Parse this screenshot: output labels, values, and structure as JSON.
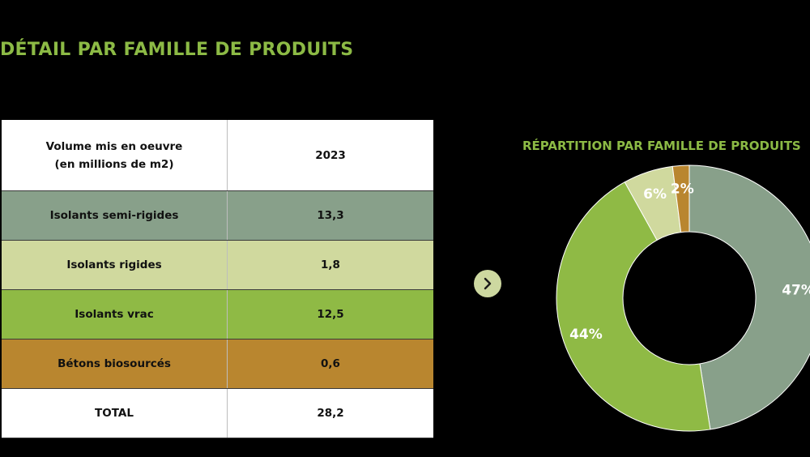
{
  "page": {
    "title": "DÉTAIL PAR FAMILLE DE PRODUITS"
  },
  "table": {
    "header": {
      "label_line1": "Volume mis en oeuvre",
      "label_line2": "(en millions de m2)",
      "year": "2023"
    },
    "rows": [
      {
        "label": "Isolants semi-rigides",
        "value": "13,3",
        "color": "#88a08a"
      },
      {
        "label": "Isolants rigides",
        "value": "1,8",
        "color": "#d0d99e"
      },
      {
        "label": "Isolants vrac",
        "value": "12,5",
        "color": "#8fba45"
      },
      {
        "label": "Bétons biosourcés",
        "value": "0,6",
        "color": "#b9862f"
      }
    ],
    "total": {
      "label": "TOTAL",
      "value": "28,2"
    }
  },
  "nav": {
    "next_icon": "chevron-right-icon"
  },
  "chart_data": {
    "type": "pie",
    "variant": "donut",
    "title": "RÉPARTITION PAR FAMILLE DE PRODUITS",
    "slices": [
      {
        "label": "Isolants semi-rigides",
        "value": 47,
        "display": "47%",
        "color": "#88a08a"
      },
      {
        "label": "Isolants vrac",
        "value": 44,
        "display": "44%",
        "color": "#8fba45"
      },
      {
        "label": "Isolants rigides",
        "value": 6,
        "display": "6%",
        "color": "#d0d99e"
      },
      {
        "label": "Bétons biosourcés",
        "value": 2,
        "display": "2%",
        "color": "#b9862f"
      }
    ]
  }
}
